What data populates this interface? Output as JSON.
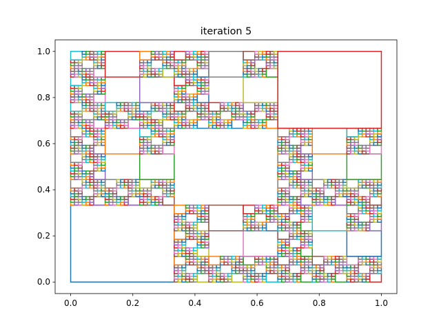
{
  "chart_data": {
    "type": "rectangle-outline-plot",
    "title": "iteration 5",
    "xlabel": "",
    "ylabel": "",
    "xlim": [
      -0.05,
      1.05
    ],
    "ylim": [
      -0.05,
      1.05
    ],
    "xticks": [
      0.0,
      0.2,
      0.4,
      0.6,
      0.8,
      1.0
    ],
    "xtick_labels": [
      "0.0",
      "0.2",
      "0.4",
      "0.6",
      "0.8",
      "1.0"
    ],
    "yticks": [
      0.0,
      0.2,
      0.4,
      0.6,
      0.8,
      1.0
    ],
    "ytick_labels": [
      "0.0",
      "0.2",
      "0.4",
      "0.6",
      "0.8",
      "1.0"
    ],
    "grid": false,
    "legend": "none",
    "color_cycle": [
      "#1f77b4",
      "#ff7f0e",
      "#2ca02c",
      "#d62728",
      "#9467bd",
      "#8c564b",
      "#e377c2",
      "#7f7f7f",
      "#bcbd22",
      "#17becf"
    ],
    "description": "Cantor-dust style subdivision: each iteration keeps the border cells of a 3x3 grid; rectangles are drawn as outlines at iteration 5",
    "iteration": 5
  }
}
